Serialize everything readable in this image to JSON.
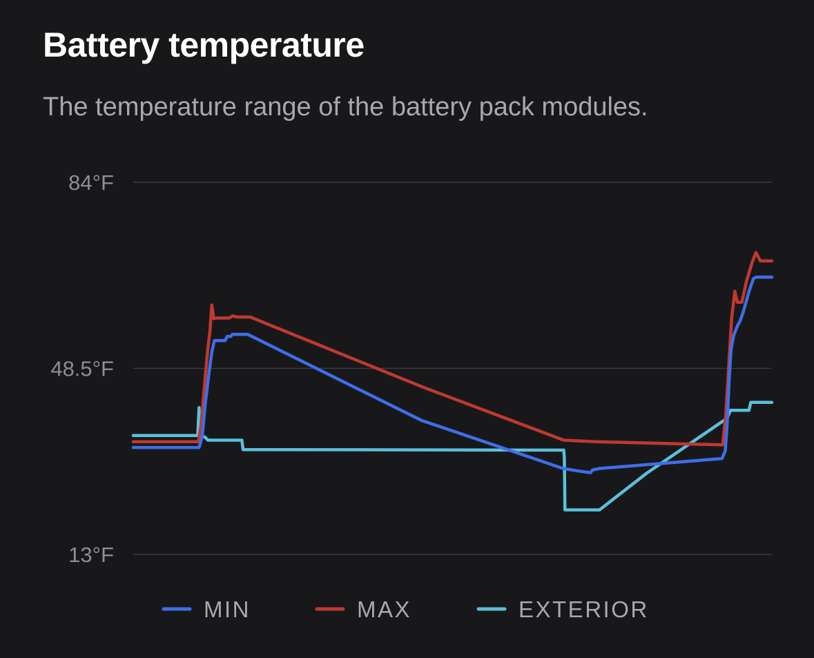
{
  "card": {
    "title": "Battery temperature",
    "subtitle": "The temperature range of the battery pack modules."
  },
  "chart_data": {
    "type": "line",
    "title": "Battery temperature",
    "subtitle": "The temperature range of the battery pack modules.",
    "y_unit": "°F",
    "ylim": [
      13,
      84
    ],
    "y_ticks": [
      {
        "value": 84,
        "label": "84°F"
      },
      {
        "value": 48.5,
        "label": "48.5°F"
      },
      {
        "value": 13,
        "label": "13°F"
      }
    ],
    "x_range": [
      0,
      100
    ],
    "grid": true,
    "legend_position": "bottom",
    "series": [
      {
        "name": "MIN",
        "color": "#3f6ee8",
        "points": [
          [
            0,
            33.4
          ],
          [
            10.3,
            33.4
          ],
          [
            10.8,
            35.5
          ],
          [
            11.3,
            42
          ],
          [
            11.9,
            48
          ],
          [
            12.3,
            51.6
          ],
          [
            12.7,
            53.8
          ],
          [
            13.5,
            53.8
          ],
          [
            14.4,
            53.8
          ],
          [
            14.7,
            54.6
          ],
          [
            15.3,
            54.6
          ],
          [
            15.5,
            55
          ],
          [
            16.2,
            55
          ],
          [
            17.9,
            55
          ],
          [
            45.1,
            38.6
          ],
          [
            67.3,
            29.4
          ],
          [
            69.8,
            28.9
          ],
          [
            71.6,
            28.6
          ],
          [
            71.9,
            29.1
          ],
          [
            73,
            29.4
          ],
          [
            92.2,
            31.3
          ],
          [
            92.7,
            32.8
          ],
          [
            93,
            38
          ],
          [
            93.3,
            46
          ],
          [
            93.6,
            52
          ],
          [
            94,
            54.7
          ],
          [
            94.6,
            56.6
          ],
          [
            95,
            57.5
          ],
          [
            95.5,
            59.2
          ],
          [
            96,
            61.3
          ],
          [
            96.4,
            63.1
          ],
          [
            97.1,
            65.6
          ],
          [
            97.5,
            65.9
          ],
          [
            100,
            65.9
          ]
        ]
      },
      {
        "name": "MAX",
        "color": "#c0392f",
        "points": [
          [
            0,
            34.5
          ],
          [
            10.2,
            34.5
          ],
          [
            10.6,
            37.5
          ],
          [
            11.1,
            44.5
          ],
          [
            11.6,
            51.3
          ],
          [
            12,
            55.5
          ],
          [
            12.3,
            60.6
          ],
          [
            12.6,
            58
          ],
          [
            13.1,
            58.1
          ],
          [
            15,
            58.1
          ],
          [
            15.6,
            58.5
          ],
          [
            16.2,
            58.3
          ],
          [
            18.3,
            58.3
          ],
          [
            45.2,
            45
          ],
          [
            67.4,
            34.8
          ],
          [
            72.5,
            34.5
          ],
          [
            92.3,
            33.9
          ],
          [
            92.8,
            40
          ],
          [
            93.3,
            50
          ],
          [
            93.7,
            58
          ],
          [
            94.2,
            63.2
          ],
          [
            94.6,
            61.1
          ],
          [
            95.3,
            61.1
          ],
          [
            96,
            65
          ],
          [
            96.9,
            68.7
          ],
          [
            97.5,
            70.6
          ],
          [
            98.2,
            69
          ],
          [
            100,
            69
          ]
        ]
      },
      {
        "name": "EXTERIOR",
        "color": "#5bc0d9",
        "points": [
          [
            0,
            35.7
          ],
          [
            10.1,
            35.7
          ],
          [
            10.3,
            41
          ],
          [
            10.5,
            36.5
          ],
          [
            10.8,
            35.7
          ],
          [
            11.3,
            35.3
          ],
          [
            11.7,
            34.8
          ],
          [
            17,
            34.8
          ],
          [
            17.2,
            33
          ],
          [
            67.4,
            32.9
          ],
          [
            67.5,
            31.5
          ],
          [
            67.6,
            21.5
          ],
          [
            73,
            21.5
          ],
          [
            80.4,
            28.5
          ],
          [
            93,
            39
          ],
          [
            93.5,
            40.5
          ],
          [
            96.4,
            40.5
          ],
          [
            96.7,
            42
          ],
          [
            100,
            42
          ]
        ]
      }
    ]
  }
}
